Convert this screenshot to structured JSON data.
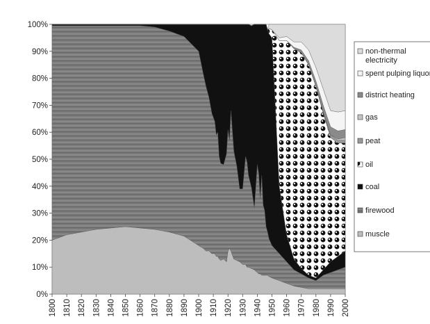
{
  "chart_data": {
    "type": "area",
    "stacked": "percent",
    "title": "",
    "xlabel": "",
    "ylabel": "",
    "xlim": [
      1800,
      2000
    ],
    "ylim": [
      0,
      100
    ],
    "x_ticks": [
      1800,
      1810,
      1820,
      1830,
      1840,
      1850,
      1860,
      1870,
      1880,
      1890,
      1900,
      1910,
      1920,
      1930,
      1940,
      1950,
      1960,
      1970,
      1980,
      1990,
      2000
    ],
    "y_tick_labels": [
      "0%",
      "10%",
      "20%",
      "30%",
      "40%",
      "50%",
      "60%",
      "70%",
      "80%",
      "90%",
      "100%"
    ],
    "grid": false,
    "legend_position": "right",
    "legend_order": [
      "non-thermal electricity",
      "spent pulping liquor",
      "district heating",
      "gas",
      "peat",
      "oil",
      "coal",
      "firewood",
      "muscle"
    ],
    "x": [
      1800,
      1810,
      1820,
      1830,
      1840,
      1850,
      1860,
      1870,
      1880,
      1890,
      1900,
      1903,
      1905,
      1907,
      1909,
      1911,
      1912,
      1913,
      1914,
      1915,
      1917,
      1919,
      1920,
      1921,
      1922,
      1924,
      1926,
      1928,
      1930,
      1932,
      1933,
      1934,
      1936,
      1938,
      1940,
      1941,
      1942,
      1943,
      1944,
      1945,
      1946,
      1947,
      1948,
      1950,
      1955,
      1960,
      1965,
      1970,
      1975,
      1980,
      1985,
      1990,
      1995,
      2000
    ],
    "series": [
      {
        "name": "muscle",
        "color": "#bdbdbd",
        "values": [
          20,
          22,
          23,
          24,
          24.5,
          25,
          24.5,
          24,
          23,
          21.5,
          18,
          17,
          16,
          16,
          15,
          15,
          14,
          14,
          13,
          12.5,
          13,
          12,
          16,
          17,
          16,
          13,
          12.5,
          12,
          11,
          11,
          10,
          10,
          9.5,
          9,
          8,
          7.5,
          7.5,
          7,
          7,
          7,
          7,
          7,
          6.5,
          6,
          5,
          4,
          3,
          2.5,
          2,
          2,
          2,
          2,
          2,
          2
        ]
      },
      {
        "name": "firewood",
        "color": "#7e7e7e",
        "values": [
          79.5,
          77.5,
          76.5,
          75.5,
          75,
          74.5,
          75,
          75,
          74.5,
          74,
          72,
          65,
          61,
          57,
          52,
          49,
          45,
          46,
          38,
          36,
          35,
          40,
          45,
          40,
          52,
          40,
          35,
          27,
          28,
          40,
          39,
          34,
          30,
          23,
          40,
          37,
          28,
          37,
          26,
          24,
          18,
          16,
          14,
          12,
          10,
          8,
          6,
          5,
          4,
          3,
          5,
          6,
          7,
          8
        ]
      },
      {
        "name": "coal",
        "color": "#111111",
        "values": [
          0.5,
          0.5,
          0.5,
          0.5,
          0.5,
          0.5,
          0.5,
          1,
          2.5,
          4.5,
          10,
          18,
          23,
          27,
          33,
          36,
          41,
          40,
          49,
          51.5,
          52,
          48,
          39,
          43,
          32,
          47,
          52.5,
          61,
          61,
          49,
          51,
          56,
          60,
          68,
          52,
          55.5,
          64.5,
          56,
          67,
          69,
          75,
          75,
          76,
          77,
          25,
          10,
          4,
          2,
          1,
          1,
          2,
          4,
          5,
          6
        ]
      },
      {
        "name": "oil",
        "color": "#3a3a3a",
        "pattern": "checker",
        "values": [
          0,
          0,
          0,
          0,
          0,
          0,
          0,
          0,
          0,
          0,
          0,
          0,
          0,
          0,
          0,
          0,
          0,
          0,
          0,
          0,
          0,
          0,
          0,
          0,
          0,
          0,
          0,
          0,
          0,
          0,
          0,
          0,
          0,
          0,
          0,
          0,
          0,
          0,
          0,
          0,
          0,
          0,
          2,
          3,
          54,
          72,
          78,
          80,
          78,
          71,
          58,
          46,
          42,
          40
        ]
      },
      {
        "name": "peat",
        "color": "#9a9a9a",
        "values": [
          0,
          0,
          0,
          0,
          0,
          0,
          0,
          0,
          0,
          0,
          0,
          0,
          0,
          0,
          0,
          0,
          0,
          0,
          0,
          0,
          0,
          0,
          0,
          0,
          0,
          0,
          0,
          0,
          0,
          0,
          0,
          0,
          0,
          0,
          0,
          0,
          0,
          0,
          0,
          0,
          0,
          0,
          0,
          0,
          0,
          0,
          0,
          0,
          0,
          0,
          0.5,
          1,
          1,
          1
        ]
      },
      {
        "name": "gas",
        "color": "#c4c4c4",
        "values": [
          0,
          0,
          0,
          0,
          0,
          0,
          0,
          0,
          0,
          0,
          0,
          0,
          0,
          0,
          0,
          0,
          0,
          0,
          0,
          0,
          0,
          0,
          0,
          0,
          0,
          0,
          0,
          0,
          0,
          0,
          0,
          0,
          0,
          0,
          0,
          0,
          0,
          0,
          0,
          0,
          0,
          0,
          0,
          0,
          0,
          0,
          0,
          0,
          0,
          0,
          0,
          0,
          0.5,
          1
        ]
      },
      {
        "name": "district heating",
        "color": "#8a8a8a",
        "values": [
          0,
          0,
          0,
          0,
          0,
          0,
          0,
          0,
          0,
          0,
          0,
          0,
          0,
          0,
          0,
          0,
          0,
          0,
          0,
          0,
          0,
          0,
          0,
          0,
          0,
          0,
          0,
          0,
          0,
          0,
          0,
          0,
          0,
          0,
          0,
          0,
          0,
          0,
          0,
          0,
          0,
          0,
          0,
          0,
          0,
          0,
          0.5,
          1,
          1.5,
          2,
          2.5,
          3,
          3,
          3
        ]
      },
      {
        "name": "spent pulping liquor",
        "color": "#f4f4f4",
        "values": [
          0,
          0,
          0,
          0,
          0,
          0,
          0,
          0,
          0,
          0,
          0,
          0,
          0,
          0,
          0,
          0,
          0,
          0,
          0,
          0,
          0,
          0,
          0,
          0,
          0,
          0,
          0,
          0,
          0,
          0,
          0,
          0,
          0,
          0,
          0,
          0,
          0,
          0,
          0,
          0,
          0,
          0,
          0,
          0,
          1,
          1.5,
          2,
          3,
          4,
          5,
          6,
          6,
          7,
          7
        ]
      },
      {
        "name": "non-thermal electricity",
        "color": "#dcdcdc",
        "values": [
          0,
          0,
          0,
          0,
          0,
          0,
          0,
          0,
          0,
          0,
          0,
          0,
          0,
          0,
          0,
          0,
          0,
          0,
          0,
          0,
          0,
          0,
          0,
          0,
          0,
          0,
          0,
          0,
          0,
          0,
          0,
          0,
          0,
          0,
          0,
          0,
          0,
          0,
          0,
          0,
          0,
          0,
          1.5,
          2,
          10,
          4.5,
          6.5,
          6.5,
          9.5,
          16,
          24,
          32,
          32.5,
          32
        ]
      }
    ]
  }
}
